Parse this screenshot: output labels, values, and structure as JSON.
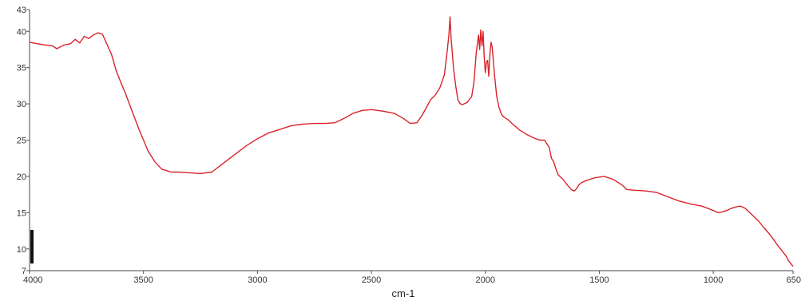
{
  "chart_data": {
    "type": "line",
    "title": "",
    "xlabel": "cm-1",
    "ylabel": "",
    "xlim": [
      4000,
      650
    ],
    "ylim": [
      7,
      43
    ],
    "x_ticks": [
      4000,
      3500,
      3000,
      2500,
      2000,
      1500,
      1000,
      650
    ],
    "y_ticks": [
      7,
      10,
      15,
      20,
      25,
      30,
      35,
      40,
      43
    ],
    "grid": false,
    "legend": "none",
    "series": [
      {
        "color": "#d9232a",
        "x": [
          4000,
          3950,
          3900,
          3880,
          3850,
          3820,
          3800,
          3780,
          3760,
          3740,
          3720,
          3700,
          3680,
          3660,
          3640,
          3620,
          3600,
          3580,
          3550,
          3520,
          3500,
          3480,
          3450,
          3420,
          3400,
          3380,
          3350,
          3300,
          3250,
          3200,
          3150,
          3100,
          3050,
          3000,
          2950,
          2900,
          2850,
          2800,
          2750,
          2700,
          2660,
          2620,
          2580,
          2540,
          2500,
          2450,
          2400,
          2360,
          2330,
          2300,
          2280,
          2260,
          2240,
          2220,
          2200,
          2180,
          2170,
          2160,
          2155,
          2150,
          2145,
          2140,
          2130,
          2120,
          2110,
          2100,
          2080,
          2060,
          2050,
          2040,
          2030,
          2025,
          2020,
          2015,
          2010,
          2005,
          2000,
          1995,
          1990,
          1985,
          1980,
          1975,
          1970,
          1965,
          1960,
          1950,
          1940,
          1930,
          1920,
          1900,
          1880,
          1850,
          1820,
          1800,
          1780,
          1760,
          1740,
          1720,
          1710,
          1700,
          1690,
          1680,
          1660,
          1640,
          1620,
          1610,
          1600,
          1590,
          1580,
          1560,
          1540,
          1520,
          1500,
          1480,
          1460,
          1440,
          1420,
          1400,
          1380,
          1350,
          1300,
          1250,
          1200,
          1150,
          1100,
          1050,
          1000,
          980,
          960,
          940,
          920,
          900,
          880,
          860,
          840,
          820,
          800,
          780,
          760,
          740,
          720,
          700,
          680,
          670,
          660,
          650
        ],
        "y": [
          38.5,
          38.2,
          38.0,
          37.6,
          38.1,
          38.3,
          38.9,
          38.4,
          39.3,
          39.0,
          39.5,
          39.8,
          39.6,
          38.2,
          36.8,
          34.6,
          33.0,
          31.5,
          29.0,
          26.5,
          25.0,
          23.5,
          22.0,
          21.0,
          20.8,
          20.6,
          20.6,
          20.5,
          20.4,
          20.6,
          21.8,
          23.0,
          24.2,
          25.2,
          26.0,
          26.5,
          27.0,
          27.2,
          27.3,
          27.3,
          27.4,
          28.0,
          28.7,
          29.1,
          29.2,
          29.0,
          28.7,
          28.0,
          27.3,
          27.4,
          28.3,
          29.4,
          30.6,
          31.2,
          32.2,
          34.0,
          36.5,
          39.5,
          42.0,
          39.0,
          37.0,
          35.0,
          32.5,
          30.5,
          30.0,
          29.9,
          30.2,
          31.0,
          33.0,
          37.0,
          39.5,
          37.5,
          40.2,
          38.0,
          40.0,
          36.5,
          34.3,
          35.8,
          36.0,
          33.8,
          37.0,
          38.5,
          37.8,
          36.0,
          34.0,
          31.0,
          29.5,
          28.6,
          28.2,
          27.8,
          27.2,
          26.4,
          25.8,
          25.5,
          25.2,
          25.0,
          25.0,
          24.0,
          22.5,
          22.0,
          21.0,
          20.2,
          19.6,
          18.8,
          18.1,
          18.0,
          18.3,
          18.8,
          19.1,
          19.4,
          19.6,
          19.8,
          19.9,
          20.0,
          19.8,
          19.6,
          19.2,
          18.8,
          18.2,
          18.1,
          18.0,
          17.8,
          17.2,
          16.6,
          16.2,
          15.9,
          15.3,
          15.0,
          15.1,
          15.3,
          15.6,
          15.8,
          15.9,
          15.6,
          15.0,
          14.4,
          13.8,
          13.0,
          12.3,
          11.5,
          10.6,
          9.8,
          9.0,
          8.4,
          8.0,
          7.6
        ]
      }
    ]
  }
}
